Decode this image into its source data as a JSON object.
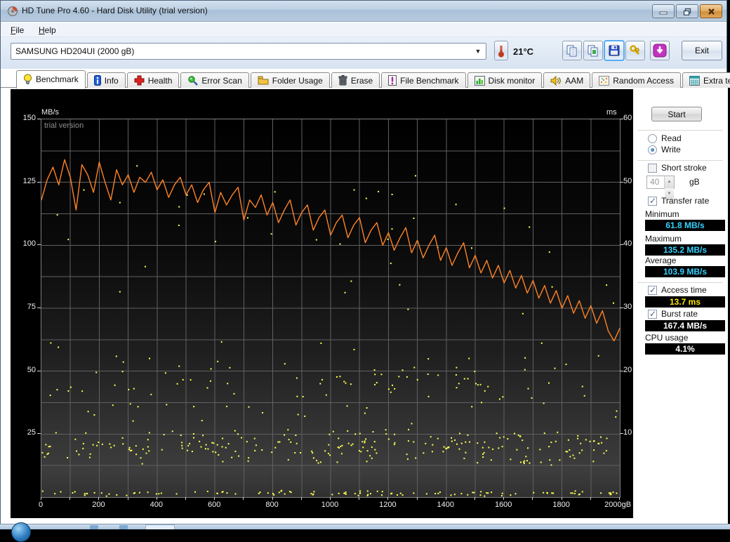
{
  "window": {
    "title": "HD Tune Pro 4.60 - Hard Disk Utility (trial version)",
    "controls": [
      "minimize",
      "restore",
      "close"
    ]
  },
  "menu": {
    "items": [
      {
        "label": "File",
        "underline": "F"
      },
      {
        "label": "Help",
        "underline": "H"
      }
    ]
  },
  "toolbar": {
    "drive_select": "SAMSUNG HD204UI (2000 gB)",
    "temperature": "21°C",
    "buttons": [
      "copy-text-icon",
      "copy-screenshot-icon",
      "save-icon",
      "options-icon",
      "update-icon"
    ],
    "exit_label": "Exit"
  },
  "tabs": [
    {
      "label": "Benchmark",
      "icon": "lightbulb-icon",
      "active": true
    },
    {
      "label": "Info",
      "icon": "info-icon",
      "active": false
    },
    {
      "label": "Health",
      "icon": "health-icon",
      "active": false
    },
    {
      "label": "Error Scan",
      "icon": "error-scan-icon",
      "active": false
    },
    {
      "label": "Folder Usage",
      "icon": "folder-icon",
      "active": false
    },
    {
      "label": "Erase",
      "icon": "erase-icon",
      "active": false
    },
    {
      "label": "File Benchmark",
      "icon": "file-benchmark-icon",
      "active": false
    },
    {
      "label": "Disk monitor",
      "icon": "disk-monitor-icon",
      "active": false
    },
    {
      "label": "AAM",
      "icon": "aam-icon",
      "active": false
    },
    {
      "label": "Random Access",
      "icon": "random-access-icon",
      "active": false
    },
    {
      "label": "Extra tests",
      "icon": "extra-tests-icon",
      "active": false
    }
  ],
  "panel": {
    "start_label": "Start",
    "read_label": "Read",
    "write_label": "Write",
    "selected_mode": "write",
    "short_stroke_label": "Short stroke",
    "short_stroke_checked": false,
    "capacity_value": "40",
    "capacity_unit": "gB",
    "transfer_rate_label": "Transfer rate",
    "transfer_rate_checked": true,
    "minimum_label": "Minimum",
    "minimum_value": "61.8 MB/s",
    "maximum_label": "Maximum",
    "maximum_value": "135.2 MB/s",
    "average_label": "Average",
    "average_value": "103.9 MB/s",
    "access_time_label": "Access time",
    "access_time_checked": true,
    "access_time_value": "13.7 ms",
    "burst_rate_label": "Burst rate",
    "burst_rate_checked": true,
    "burst_rate_value": "167.4 MB/s",
    "cpu_usage_label": "CPU usage",
    "cpu_usage_value": "4.1%",
    "value_colors": {
      "rate": "#35d2ff",
      "access": "#ffe600",
      "plain": "#ffffff"
    }
  },
  "chart_data": {
    "type": "line",
    "watermark": "trial version",
    "y_left": {
      "label": "MB/s",
      "min": 0,
      "max": 150,
      "ticks": [
        150,
        125,
        100,
        75,
        50,
        25
      ],
      "grid_step": 12.5
    },
    "y_right": {
      "label": "ms",
      "min": 0,
      "max": 60,
      "ticks": [
        60,
        50,
        40,
        30,
        20,
        10
      ]
    },
    "x": {
      "min": 0,
      "max": 2000,
      "grid_step": 100,
      "tick_step": 100,
      "tick_labels": [
        0,
        200,
        400,
        600,
        800,
        1000,
        1200,
        1400,
        1600,
        1800
      ],
      "end_label": "2000gB"
    },
    "series": [
      {
        "name": "write-transfer-rate",
        "unit": "MB/s",
        "axis": "left",
        "color": "#ff8226",
        "x_step": 20,
        "values": [
          118,
          126,
          131,
          124,
          134,
          127,
          114,
          132,
          128,
          121,
          133,
          125,
          118,
          130,
          124,
          128,
          121,
          127,
          125,
          129,
          122,
          126,
          119,
          124,
          127,
          120,
          124,
          117,
          122,
          125,
          113,
          121,
          116,
          120,
          123,
          110,
          118,
          115,
          120,
          112,
          117,
          109,
          114,
          118,
          108,
          113,
          116,
          106,
          111,
          114,
          104,
          109,
          112,
          103,
          108,
          111,
          101,
          106,
          109,
          100,
          105,
          98,
          103,
          107,
          97,
          102,
          95,
          100,
          104,
          94,
          99,
          92,
          97,
          101,
          91,
          96,
          89,
          94,
          87,
          92,
          85,
          90,
          83,
          88,
          81,
          86,
          79,
          84,
          77,
          82,
          75,
          80,
          73,
          78,
          71,
          76,
          69,
          74,
          66,
          62,
          67
        ]
      }
    ],
    "scatter": {
      "name": "access-time-dots",
      "unit": "ms",
      "axis": "right",
      "color": "#ffff55",
      "seed": 7,
      "x_range": [
        0,
        2000
      ],
      "bands": [
        {
          "count": 240,
          "ms_min": 5,
          "ms_max": 11
        },
        {
          "count": 110,
          "ms_min": 0.2,
          "ms_max": 1.2
        },
        {
          "count": 110,
          "ms_min": 11,
          "ms_max": 26
        },
        {
          "count": 40,
          "ms_min": 26,
          "ms_max": 58
        }
      ]
    }
  },
  "taskbar": {
    "items": [
      "start-orb"
    ]
  }
}
